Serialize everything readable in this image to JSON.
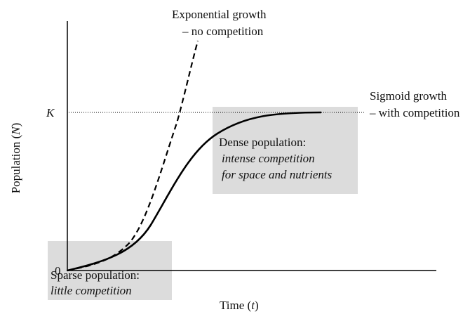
{
  "labels": {
    "exponential": [
      "Exponential growth",
      "– no competition"
    ],
    "sigmoid": [
      "Sigmoid growth",
      "– with competition"
    ],
    "k": "K",
    "zero": "0",
    "y_axis": [
      "Population (",
      "N",
      ")"
    ],
    "x_axis": [
      "Time (",
      "t",
      ")"
    ],
    "dense": {
      "title": "Dense population:",
      "lines": [
        "intense competition",
        "for space and nutrients"
      ]
    },
    "sparse": {
      "title": "Sparse population:",
      "lines": [
        "little competition"
      ]
    }
  }
}
